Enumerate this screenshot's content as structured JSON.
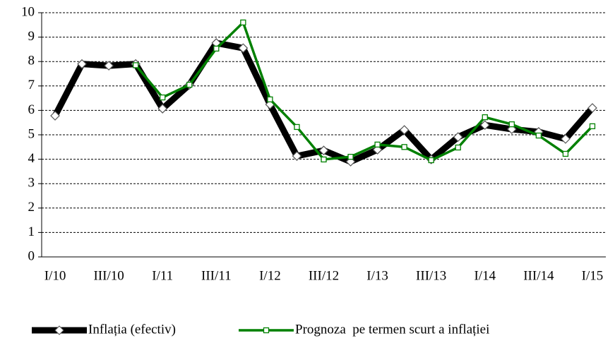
{
  "chart_data": {
    "type": "line",
    "categories": [
      "I/10",
      null,
      "III/10",
      null,
      "I/11",
      null,
      "III/11",
      null,
      "I/12",
      null,
      "III/12",
      null,
      "I/13",
      null,
      "III/13",
      null,
      "I/14",
      null,
      "III/14",
      null,
      "I/15"
    ],
    "series": [
      {
        "name": "Inflația (efectiv)",
        "color": "#000000",
        "values": [
          5.78,
          7.9,
          7.83,
          7.9,
          6.07,
          7.05,
          8.76,
          8.55,
          6.24,
          4.13,
          4.36,
          3.9,
          4.39,
          5.2,
          3.99,
          4.91,
          5.4,
          5.23,
          5.12,
          4.83,
          6.1
        ]
      },
      {
        "name": "Prognoza  pe termen scurt a inflației",
        "color": "#008000",
        "values": [
          null,
          null,
          null,
          7.85,
          6.53,
          7.05,
          8.53,
          9.6,
          6.45,
          5.32,
          3.99,
          4.1,
          4.6,
          4.5,
          3.96,
          4.48,
          5.72,
          5.43,
          4.97,
          4.22,
          5.35
        ]
      }
    ],
    "ylim": [
      0,
      10
    ],
    "yticks": [
      0,
      1,
      2,
      3,
      4,
      5,
      6,
      7,
      8,
      9,
      10
    ],
    "grid": true,
    "legend": "bottom"
  }
}
